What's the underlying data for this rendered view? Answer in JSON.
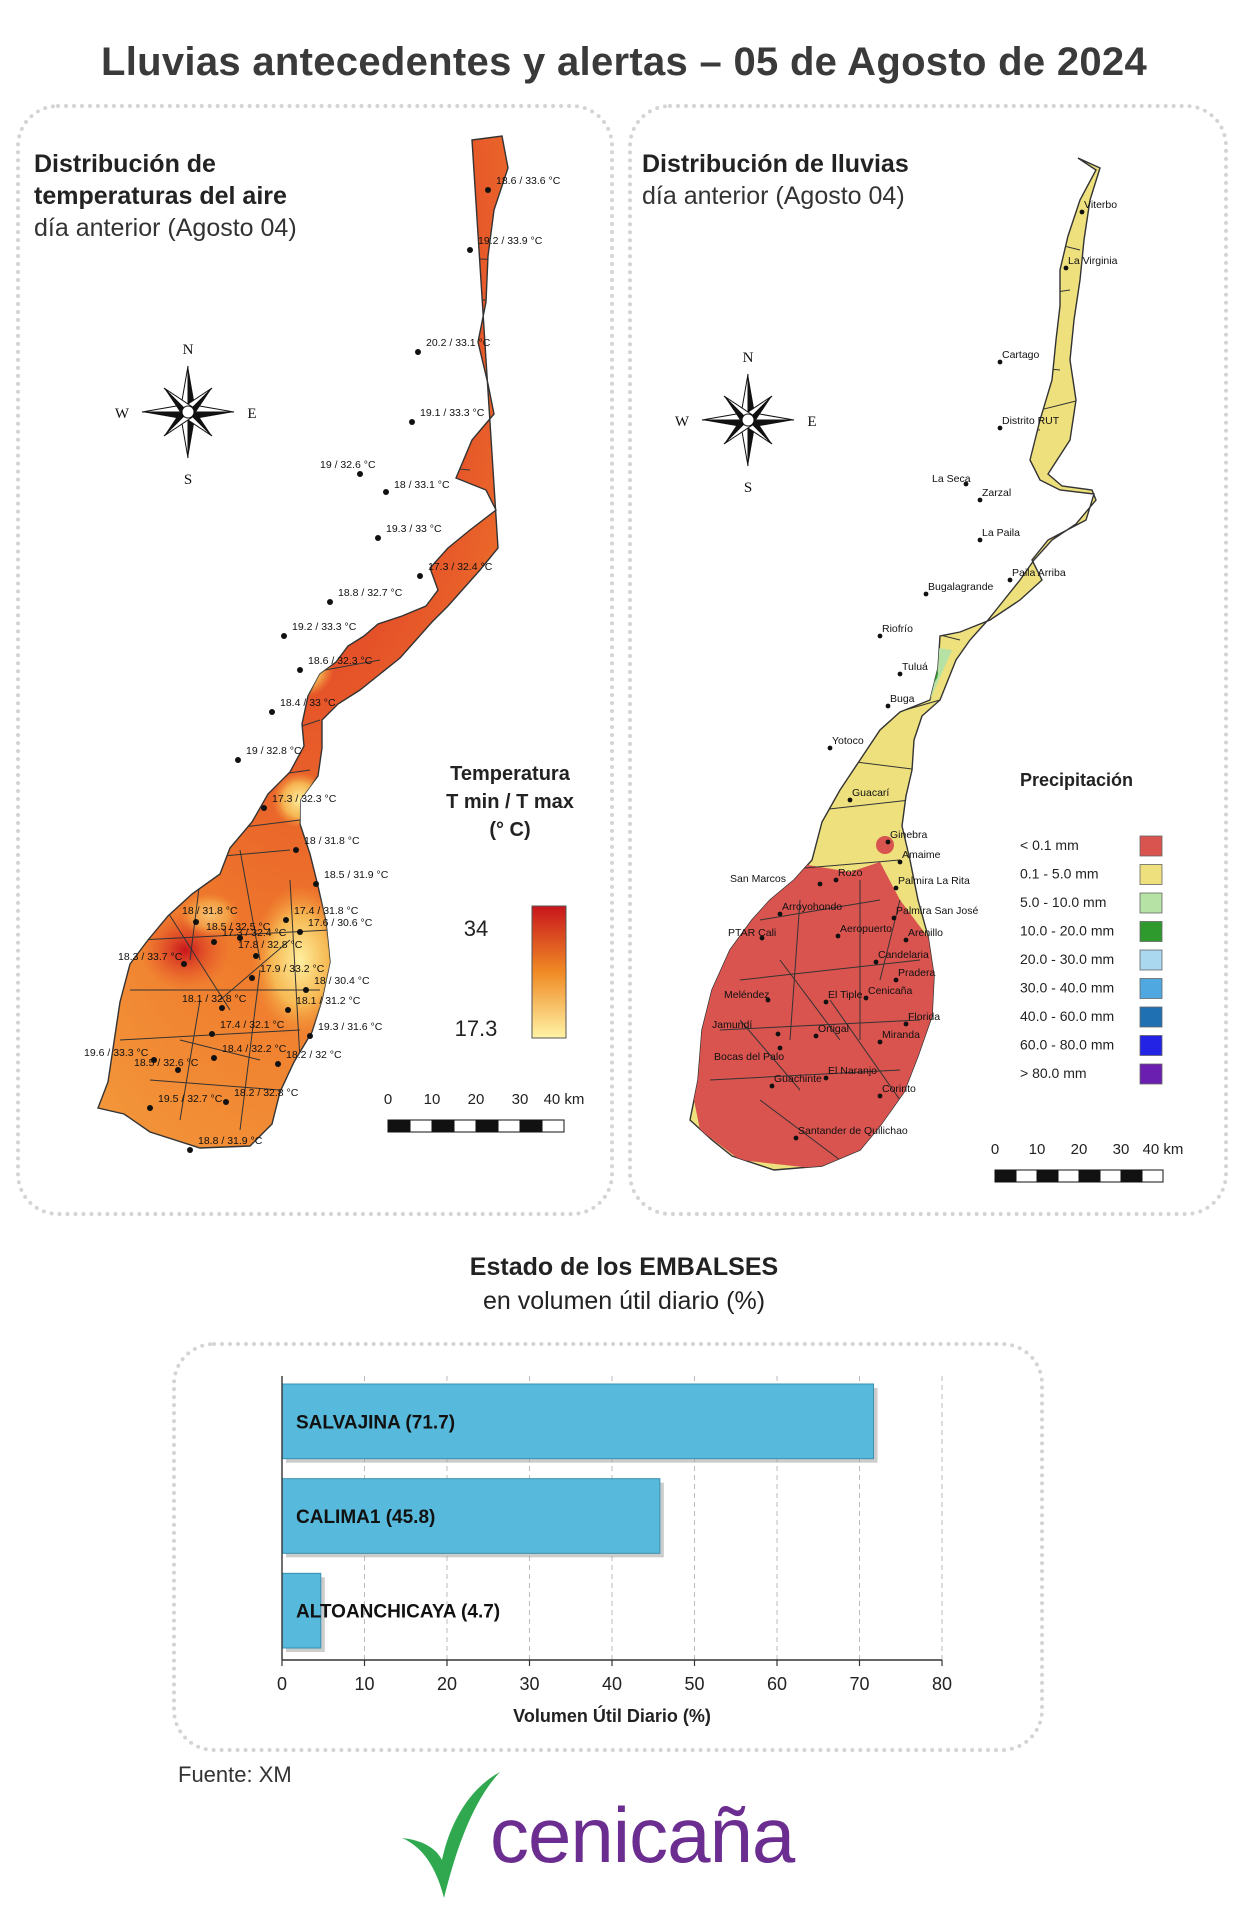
{
  "title": "Lluvias antecedentes y alertas – 05 de Agosto de 2024",
  "temperature_map": {
    "title_bold": "Distribución de temperaturas del aire",
    "title_line1": "Distribución de",
    "title_line2": "temperaturas del aire",
    "subtitle": "día anterior (Agosto 04)",
    "compass": {
      "n": "N",
      "s": "S",
      "e": "E",
      "w": "W"
    },
    "legend": {
      "title_line1": "Temperatura",
      "title_line2": "T min / T max",
      "title_line3": "(° C)",
      "max": "34",
      "min": "17.3",
      "color_high": "#c8161d",
      "color_mid": "#f08a24",
      "color_low": "#fff3a6"
    },
    "scale_bar": {
      "ticks": [
        "0",
        "10",
        "20",
        "30",
        "40 km"
      ]
    },
    "stations": [
      "18.6 / 33.6 °C",
      "19.2 / 33.9 °C",
      "20.2 / 33.1 °C",
      "19.1 / 33.3 °C",
      "19 / 32.6 °C",
      "18 / 33.1 °C",
      "19.3 / 33 °C",
      "17.3 / 32.4 °C",
      "18.8 / 32.7 °C",
      "19.2 / 33.3 °C",
      "18.6 / 32.3 °C",
      "18.4 / 33 °C",
      "19 / 32.8 °C",
      "17.3 / 32.3 °C",
      "18 / 31.8 °C",
      "18.5 / 31.9 °C",
      "18 / 31.8 °C",
      "18.5 / 32.5 °C",
      "17.4 / 31.8 °C",
      "17.3 / 32.4 °C",
      "17.6 / 30.6 °C",
      "17.8 / 32.8 °C",
      "18.3 / 33.7 °C",
      "17.9 / 33.2 °C",
      "18 / 30.4 °C",
      "18.1 / 32.8 °C",
      "18.1 / 31.2 °C",
      "17.4 / 32.1 °C",
      "19.3 / 31.6 °C",
      "19.6 / 33.3 °C",
      "18.4 / 32.2 °C",
      "18.2 / 32 °C",
      "18.5 / 32.6 °C",
      "19.5 / 32.7 °C",
      "18.2 / 32.8 °C",
      "18.8 / 31.9 °C"
    ]
  },
  "rain_map": {
    "title_bold": "Distribución de lluvias",
    "subtitle": "día anterior (Agosto 04)",
    "compass": {
      "n": "N",
      "s": "S",
      "e": "E",
      "w": "W"
    },
    "places": [
      "Viterbo",
      "La Virginia",
      "Cartago",
      "Distrito RUT",
      "La Seca",
      "Zarzal",
      "La Paila",
      "Paila Arriba",
      "Bugalagrande",
      "Riofrío",
      "Tuluá",
      "Buga",
      "Yotoco",
      "Guacarí",
      "Ginebra",
      "Amaime",
      "San Marcos",
      "Rozo",
      "Palmira La Rita",
      "Arroyohondo",
      "Palmira San José",
      "Aeropuerto",
      "PTAR Cali",
      "Arenillo",
      "Candelaria",
      "Pradera",
      "Meléndez",
      "El Tiple",
      "Cenicaña",
      "Florida",
      "Jamundí",
      "Bocas del Palo",
      "Ortigal",
      "Miranda",
      "Guachinte",
      "El Naranjo",
      "Corinto",
      "Santander de Quilichao"
    ],
    "legend": {
      "title": "Precipitación",
      "items": [
        {
          "label": "< 0.1 mm",
          "color": "#d9534f"
        },
        {
          "label": "0.1 - 5.0 mm",
          "color": "#ede07d"
        },
        {
          "label": "5.0 - 10.0 mm",
          "color": "#b6e2a5"
        },
        {
          "label": "10.0 - 20.0 mm",
          "color": "#2e9a2e"
        },
        {
          "label": "20.0 - 30.0 mm",
          "color": "#a9d8ef"
        },
        {
          "label": "30.0 - 40.0 mm",
          "color": "#4fa8e0"
        },
        {
          "label": "40.0 - 60.0 mm",
          "color": "#1f6fb3"
        },
        {
          "label": "60.0 - 80.0 mm",
          "color": "#2323e6"
        },
        {
          "label": "> 80.0 mm",
          "color": "#6a1fb0"
        }
      ]
    },
    "scale_bar": {
      "ticks": [
        "0",
        "10",
        "20",
        "30",
        "40 km"
      ]
    }
  },
  "reservoirs": {
    "title": "Estado de los EMBALSES",
    "subtitle": "en volumen útil diario (%)",
    "chart_data": {
      "type": "bar",
      "orientation": "horizontal",
      "categories": [
        "SALVAJINA",
        "CALIMA1",
        "ALTOANCHICAYA"
      ],
      "values": [
        71.7,
        45.8,
        4.7
      ],
      "bar_labels": [
        "SALVAJINA (71.7)",
        "CALIMA1 (45.8)",
        "ALTOANCHICAYA (4.7)"
      ],
      "xlabel": "Volumen Útil Diario (%)",
      "xlim": [
        0,
        80
      ],
      "xticks": [
        0,
        10,
        20,
        30,
        40,
        50,
        60,
        70,
        80
      ],
      "grid": true,
      "bar_color": "#57b9dc"
    }
  },
  "source": "Fuente: XM",
  "logo": {
    "text": "cenicaña",
    "text_color": "#6b2d8f",
    "mark_color": "#2fa84f"
  }
}
